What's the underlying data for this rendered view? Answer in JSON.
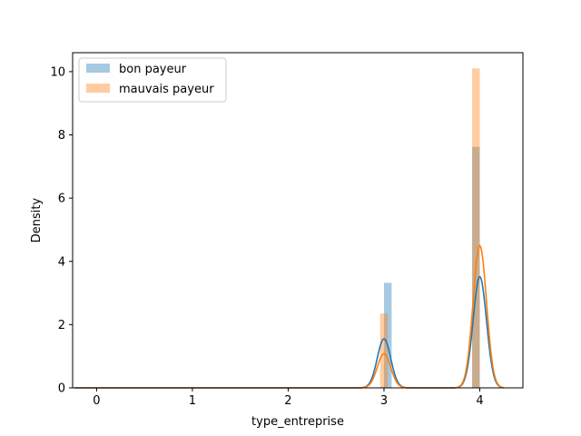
{
  "chart_data": {
    "type": "bar",
    "xlabel": "type_entreprise",
    "ylabel": "Density",
    "xlim": [
      -0.25,
      4.45
    ],
    "ylim": [
      0,
      10.6
    ],
    "xticks": [
      "0",
      "1",
      "2",
      "3",
      "4"
    ],
    "yticks": [
      "0",
      "2",
      "4",
      "6",
      "8",
      "10"
    ],
    "grid": false,
    "legend_position": "top-left",
    "legend": [
      "bon payeur",
      "mauvais payeur"
    ],
    "series": [
      {
        "name": "bon payeur",
        "color": "#1f77b4",
        "hist_bins": [
          {
            "x0": 3.0,
            "x1": 3.08,
            "density": 3.32
          },
          {
            "x0": 3.92,
            "x1": 4.0,
            "density": 7.62
          }
        ],
        "kde_peaks": [
          {
            "center": 3.0,
            "height": 1.55,
            "sigma": 0.07
          },
          {
            "center": 4.0,
            "height": 3.52,
            "sigma": 0.07
          }
        ]
      },
      {
        "name": "mauvais payeur",
        "color": "#ff7f0e",
        "hist_bins": [
          {
            "x0": 2.96,
            "x1": 3.04,
            "density": 2.35
          },
          {
            "x0": 3.92,
            "x1": 4.0,
            "density": 10.1
          }
        ],
        "kde_peaks": [
          {
            "center": 3.0,
            "height": 1.08,
            "sigma": 0.07
          },
          {
            "center": 4.0,
            "height": 4.5,
            "sigma": 0.07
          }
        ]
      }
    ]
  }
}
